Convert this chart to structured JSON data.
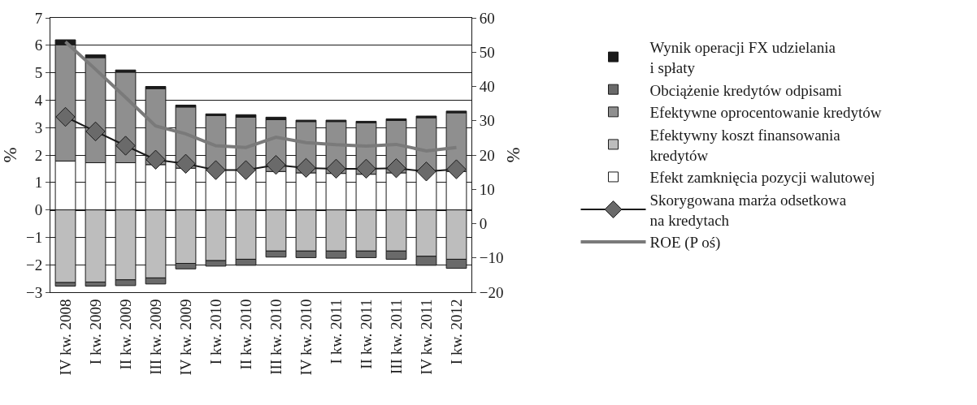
{
  "chart_data": {
    "type": "bar",
    "stacked": true,
    "ylabel": "%",
    "y2label": "%",
    "categories": [
      "IV kw. 2008",
      "I kw. 2009",
      "II kw. 2009",
      "III kw. 2009",
      "IV kw. 2009",
      "I kw. 2010",
      "II kw. 2010",
      "III kw. 2010",
      "IV kw. 2010",
      "I kw. 2011",
      "II kw. 2011",
      "III kw. 2011",
      "IV kw. 2011",
      "I kw. 2012"
    ],
    "series": [
      {
        "name": "Efekt zamknięcia pozycji walutowej",
        "color": "#ffffff",
        "values": [
          1.78,
          1.72,
          1.72,
          1.65,
          1.52,
          1.45,
          1.45,
          1.4,
          1.35,
          1.33,
          1.3,
          1.35,
          1.4,
          1.4
        ]
      },
      {
        "name": "Efektywny koszt finansowania\nkredytów",
        "color": "#bdbdbd",
        "values": [
          -2.65,
          -2.63,
          -2.55,
          -2.48,
          -1.95,
          -1.85,
          -1.8,
          -1.5,
          -1.5,
          -1.5,
          -1.5,
          -1.5,
          -1.69,
          -1.8
        ]
      },
      {
        "name": "Efektywne oprocentowanie kredytów",
        "color": "#8f8f8f",
        "values": [
          4.24,
          3.83,
          3.3,
          2.77,
          2.23,
          1.99,
          1.93,
          1.89,
          1.87,
          1.89,
          1.88,
          1.91,
          1.96,
          2.14
        ]
      },
      {
        "name": "Obciążenie kredytów odpisami",
        "color": "#6a6a6a",
        "values": [
          -0.13,
          -0.15,
          -0.21,
          -0.22,
          -0.2,
          -0.2,
          -0.22,
          -0.22,
          -0.24,
          -0.26,
          -0.24,
          -0.3,
          -0.33,
          -0.33
        ]
      },
      {
        "name": "Wynik operacji FX udzielania\ni spłaty",
        "color": "#1a1a1a",
        "values": [
          0.18,
          0.1,
          0.08,
          0.08,
          0.07,
          0.06,
          0.09,
          0.09,
          0.05,
          0.05,
          0.05,
          0.06,
          0.06,
          0.06
        ]
      },
      {
        "name": "Skorygowana marża odsetkowa\nna kredytach",
        "type": "line",
        "color": "#1a1a1a",
        "marker": "diamond",
        "values": [
          3.39,
          2.86,
          2.34,
          1.83,
          1.68,
          1.45,
          1.45,
          1.64,
          1.53,
          1.5,
          1.5,
          1.52,
          1.4,
          1.48
        ]
      },
      {
        "name": "ROE (P oś)",
        "type": "line",
        "axis": "y2",
        "color": "#7a7a7a",
        "marker": "none",
        "values": [
          53,
          45,
          36.8,
          28.5,
          26.2,
          22.7,
          22.2,
          25.2,
          23.6,
          23.0,
          22.6,
          23.1,
          21.2,
          22.2
        ]
      }
    ],
    "ylim": [
      -3,
      7
    ],
    "yticks": [
      {
        "value": -3,
        "label": "−3"
      },
      {
        "value": -2,
        "label": "−2"
      },
      {
        "value": -1,
        "label": "−1"
      },
      0,
      1,
      2,
      3,
      4,
      5,
      6,
      7
    ],
    "y2lim": [
      -20,
      60
    ],
    "y2ticks": [
      {
        "value": -20,
        "label": "−20"
      },
      {
        "value": -10,
        "label": "−10"
      },
      0,
      10,
      20,
      30,
      40,
      50,
      60
    ],
    "grid": "y",
    "legend": "right"
  }
}
